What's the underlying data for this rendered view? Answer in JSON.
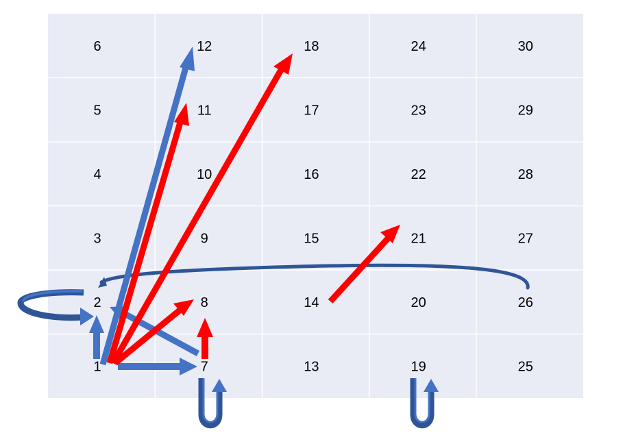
{
  "grid": {
    "columns": 5,
    "rows": 6,
    "cell_fill": "#e9ebf5",
    "line_color": "#ffffff",
    "cells": [
      [
        "6",
        "12",
        "18",
        "24",
        "30"
      ],
      [
        "5",
        "11",
        "17",
        "23",
        "29"
      ],
      [
        "4",
        "10",
        "16",
        "22",
        "28"
      ],
      [
        "3",
        "9",
        "15",
        "21",
        "27"
      ],
      [
        "2",
        "8",
        "14",
        "20",
        "26"
      ],
      [
        "1",
        "7",
        "13",
        "19",
        "25"
      ]
    ]
  },
  "colors": {
    "blue_arrow": "#4472c4",
    "red_arrow": "#ff0000",
    "dark_blue_curve": "#2f5597"
  },
  "blue_arrows": [
    {
      "from": "1",
      "to": "12"
    },
    {
      "from": "1",
      "to": "2"
    },
    {
      "from": "1",
      "to": "7"
    },
    {
      "from": "7",
      "to": "2"
    }
  ],
  "red_arrows": [
    {
      "from": "1",
      "to": "11"
    },
    {
      "from": "1",
      "to": "18"
    },
    {
      "from": "1",
      "to": "8"
    },
    {
      "from": "7",
      "to": "8"
    },
    {
      "from": "14",
      "to": "21"
    }
  ],
  "curved_arrows": [
    {
      "from": "26",
      "to": "2"
    },
    {
      "from": "2",
      "to": "2"
    },
    {
      "from": "7",
      "to": "7"
    },
    {
      "from": "19",
      "to": "19"
    }
  ]
}
